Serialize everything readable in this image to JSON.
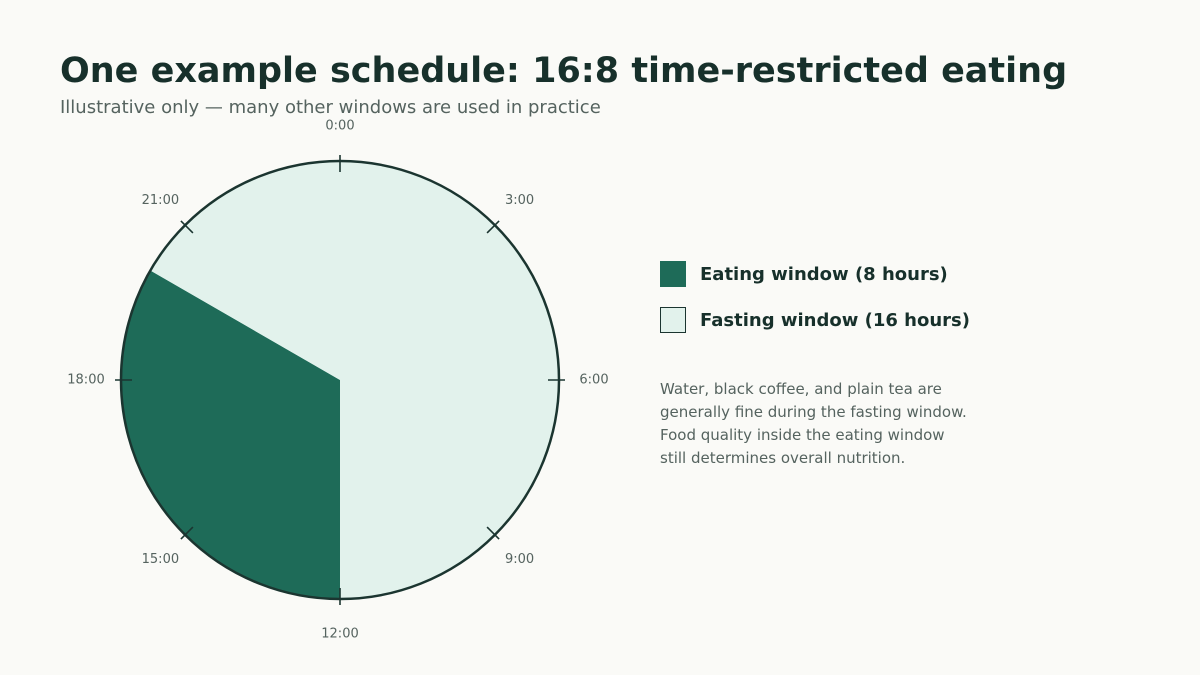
{
  "title": "One example schedule: 16:8 time-restricted eating",
  "subtitle": "Illustrative only — many other windows are used in practice",
  "colors": {
    "eating": "#1e6b58",
    "fasting": "#e2f2ec",
    "outline": "#1b3530",
    "tick_label": "#55635f"
  },
  "chart_data": {
    "type": "pie",
    "title": "One example schedule: 16:8 time-restricted eating",
    "subtitle": "Illustrative only — many other windows are used in practice",
    "hours_per_day": 24,
    "tick_labels": [
      "0:00",
      "3:00",
      "6:00",
      "9:00",
      "12:00",
      "15:00",
      "18:00",
      "21:00"
    ],
    "tick_hours": [
      0,
      3,
      6,
      9,
      12,
      15,
      18,
      21
    ],
    "slices": [
      {
        "label": "Eating window (8 hours)",
        "start_hour": 12,
        "end_hour": 20,
        "hours": 8,
        "color": "#1e6b58"
      },
      {
        "label": "Fasting window (16 hours)",
        "start_hour": 20,
        "end_hour": 12,
        "hours": 16,
        "color": "#e2f2ec"
      }
    ],
    "legend_placement": "right"
  },
  "legend": {
    "eating_label": "Eating window (8 hours)",
    "fasting_label": "Fasting window (16 hours)"
  },
  "note": {
    "lines": [
      "Water, black coffee, and plain tea are",
      "generally fine during the fasting window.",
      "Food quality inside the eating window",
      "still determines overall nutrition."
    ]
  }
}
